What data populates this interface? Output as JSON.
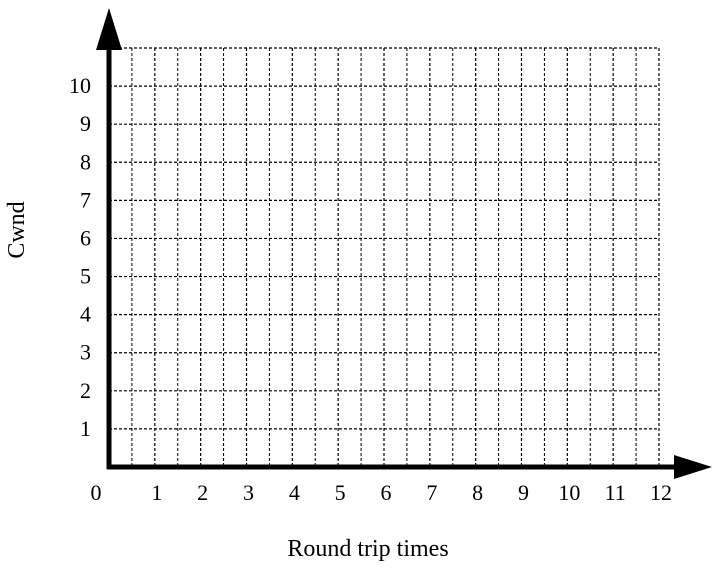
{
  "chart_data": {
    "type": "line",
    "title": "",
    "xlabel": "Round trip times",
    "ylabel": "Cwnd",
    "xlim": [
      0,
      12
    ],
    "ylim": [
      0,
      11
    ],
    "x_ticks": [
      0,
      1,
      2,
      3,
      4,
      5,
      6,
      7,
      8,
      9,
      10,
      11,
      12
    ],
    "x_tick_labels": [
      "0",
      "1",
      "2",
      "3",
      "4",
      "5",
      "6",
      "7",
      "8",
      "9",
      "10",
      "11",
      "12"
    ],
    "y_ticks": [
      1,
      2,
      3,
      4,
      5,
      6,
      7,
      8,
      9,
      10
    ],
    "y_tick_labels": [
      "1",
      "2",
      "3",
      "4",
      "5",
      "6",
      "7",
      "8",
      "9",
      "10"
    ],
    "grid": true,
    "grid_style": "dashed",
    "series": [],
    "colors": {
      "axis": "#000000",
      "grid": "#000000"
    }
  }
}
